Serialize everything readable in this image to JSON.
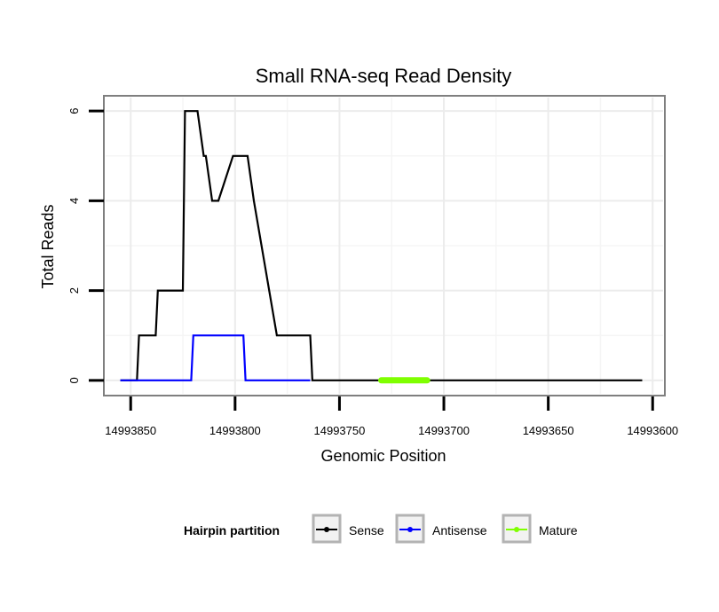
{
  "chart_data": {
    "type": "line",
    "title": "Small RNA-seq Read Density",
    "xlabel": "Genomic Position",
    "ylabel": "Total Reads",
    "xlim": [
      14993862,
      14993595
    ],
    "ylim": [
      -0.3,
      6.3
    ],
    "x_reversed": true,
    "x_ticks": [
      14993850,
      14993800,
      14993750,
      14993700,
      14993650,
      14993600
    ],
    "x_tick_labels": [
      "14993850",
      "14993800",
      "14993750",
      "14993700",
      "14993650",
      "14993600"
    ],
    "y_ticks": [
      0,
      2,
      4,
      6
    ],
    "y_tick_labels": [
      "0",
      "2",
      "4",
      "6"
    ],
    "grid": true,
    "legend": {
      "title": "Hairpin partition",
      "position": "bottom",
      "entries": [
        {
          "label": "Sense",
          "color": "#000000"
        },
        {
          "label": "Antisense",
          "color": "#0000ff"
        },
        {
          "label": "Mature",
          "color": "#7fff00"
        }
      ]
    },
    "series": [
      {
        "name": "Sense",
        "color": "#000000",
        "x": [
          14993855,
          14993847,
          14993846,
          14993838,
          14993837,
          14993825,
          14993824,
          14993818,
          14993815,
          14993814,
          14993811,
          14993808,
          14993801,
          14993800,
          14993794,
          14993791,
          14993780,
          14993779,
          14993764,
          14993763,
          14993605
        ],
        "y": [
          0,
          0,
          1,
          1,
          2,
          2,
          6,
          6,
          5,
          5,
          4,
          4,
          5,
          5,
          5,
          4,
          1,
          1,
          1,
          0,
          0
        ]
      },
      {
        "name": "Antisense",
        "color": "#0000ff",
        "x": [
          14993855,
          14993821,
          14993820,
          14993796,
          14993795,
          14993778,
          14993777,
          14993764
        ],
        "y": [
          0,
          0,
          1,
          1,
          0,
          0,
          0,
          0
        ]
      },
      {
        "name": "Mature",
        "color": "#7fff00",
        "x": [
          14993730,
          14993708
        ],
        "y": [
          0,
          0
        ]
      }
    ]
  }
}
